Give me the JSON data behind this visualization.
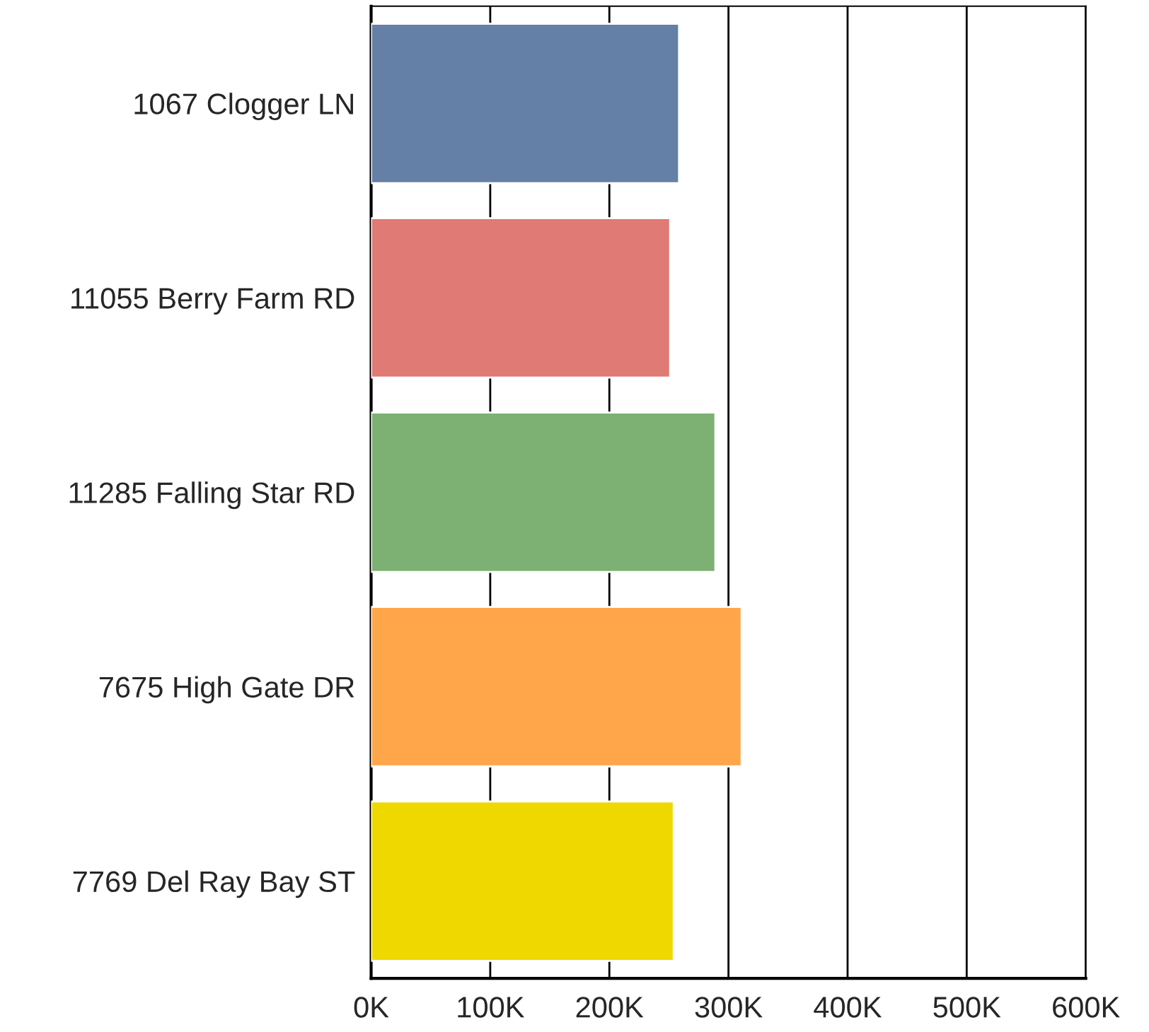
{
  "chart_data": {
    "type": "bar",
    "orientation": "horizontal",
    "categories": [
      "1067 Clogger LN",
      "11055 Berry Farm RD",
      "11285 Falling Star RD",
      "7675 High Gate DR",
      "7769 Del Ray Bay ST"
    ],
    "values": [
      258500,
      251000,
      289000,
      311000,
      254000
    ],
    "colors": [
      "#6480a6",
      "#e07a74",
      "#7db174",
      "#ffa54a",
      "#eed800"
    ],
    "xlim": [
      0,
      600000
    ],
    "xticks": [
      {
        "value": 0,
        "label": "0K"
      },
      {
        "value": 100000,
        "label": "100K"
      },
      {
        "value": 200000,
        "label": "200K"
      },
      {
        "value": 300000,
        "label": "300K"
      },
      {
        "value": 400000,
        "label": "400K"
      },
      {
        "value": 500000,
        "label": "500K"
      },
      {
        "value": 600000,
        "label": "600K"
      }
    ],
    "grid": "x",
    "legend": false
  }
}
